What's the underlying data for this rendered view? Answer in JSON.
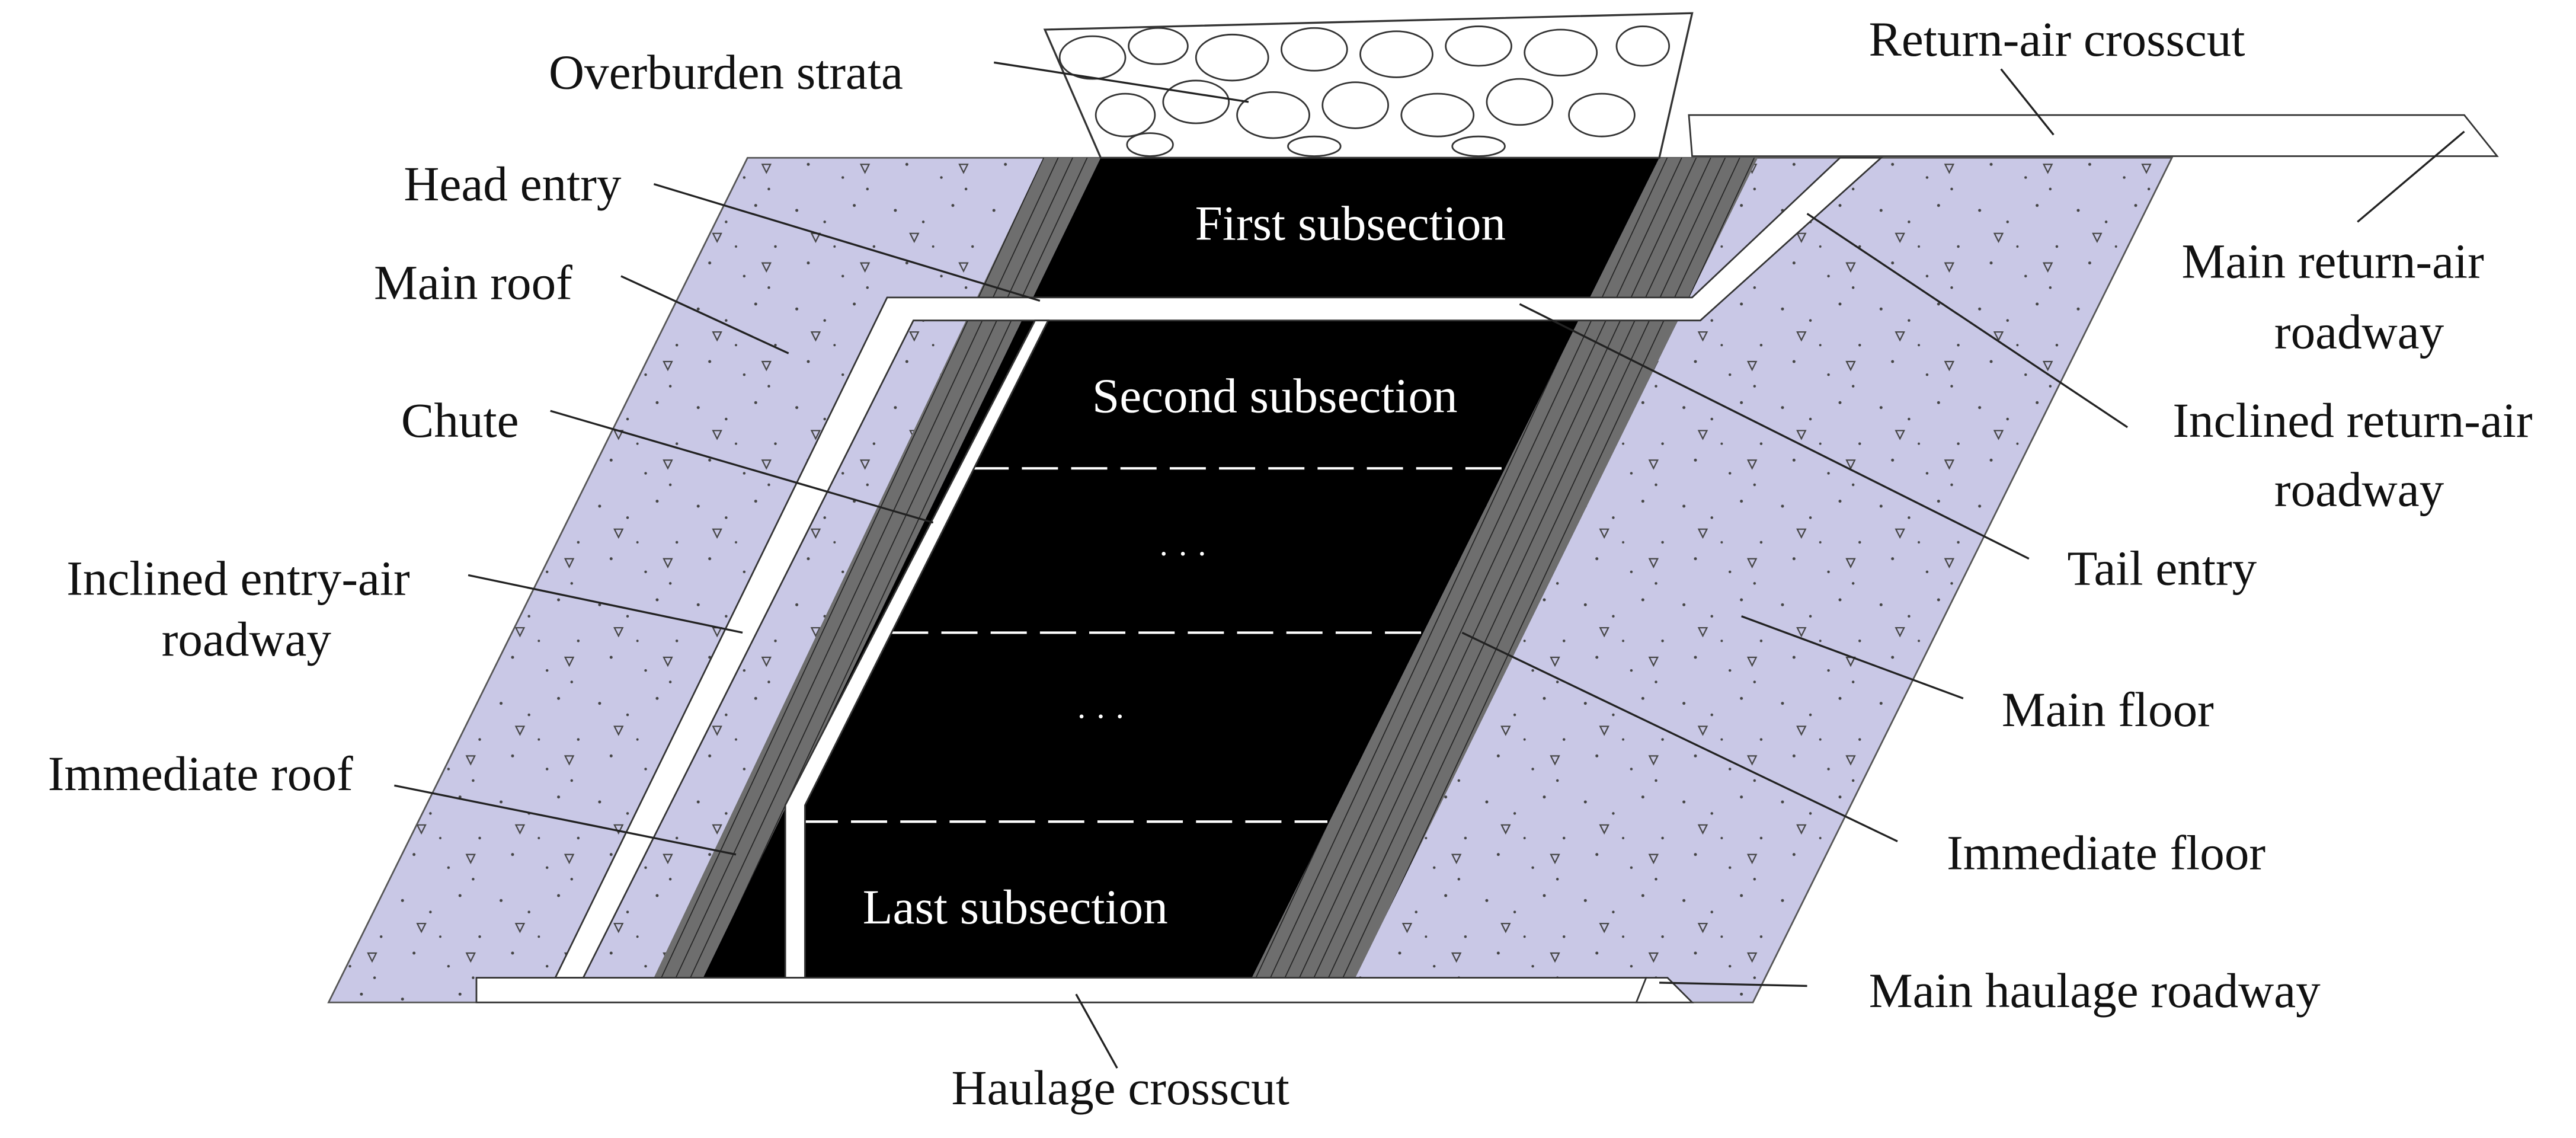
{
  "labels": {
    "overburden_strata": "Overburden strata",
    "return_air_crosscut": "Return-air crosscut",
    "head_entry": "Head entry",
    "main_roof": "Main roof",
    "main_return_air_roadway": [
      "Main return-air",
      "roadway"
    ],
    "chute": "Chute",
    "inclined_return_air_roadway": [
      "Inclined return-air",
      "roadway"
    ],
    "inclined_entry_air_roadway": [
      "Inclined entry-air",
      "roadway"
    ],
    "tail_entry": "Tail entry",
    "main_floor": "Main floor",
    "immediate_roof": "Immediate roof",
    "immediate_floor": "Immediate floor",
    "main_haulage_roadway": "Main haulage roadway",
    "haulage_crosscut": "Haulage crosscut",
    "first_subsection": "First subsection",
    "second_subsection": "Second subsection",
    "ellipsis_upper": "· · ·",
    "ellipsis_lower": "· · ·",
    "last_subsection": "Last subsection"
  }
}
